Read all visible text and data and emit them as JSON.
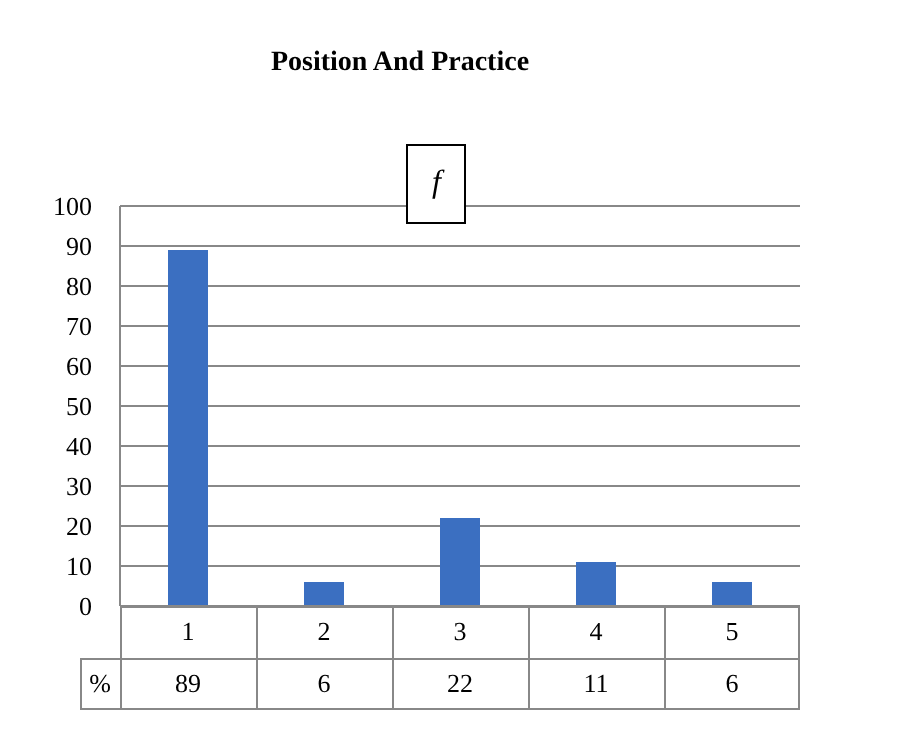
{
  "chart_data": {
    "type": "bar",
    "title": "Position And Practice",
    "categories": [
      "1",
      "2",
      "3",
      "4",
      "5"
    ],
    "series": [
      {
        "name": "f",
        "color": "#3b6fc1",
        "values": [
          89,
          6,
          22,
          11,
          6
        ]
      }
    ],
    "ylim": [
      0,
      100
    ],
    "yticks": [
      0,
      10,
      20,
      30,
      40,
      50,
      60,
      70,
      80,
      90,
      100
    ],
    "grid": "y",
    "legend": "top",
    "data_labels": true,
    "annotations": [
      "%"
    ]
  }
}
